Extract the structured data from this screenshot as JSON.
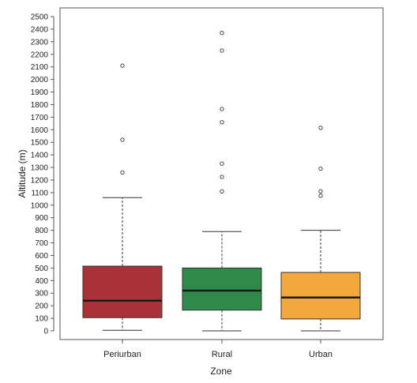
{
  "chart_data": {
    "type": "box",
    "title": "",
    "xlabel": "Zone",
    "ylabel": "Altitude (m)",
    "ylim": [
      -80,
      2600
    ],
    "yticks": [
      0,
      100,
      200,
      300,
      400,
      500,
      600,
      700,
      800,
      900,
      1000,
      1100,
      1200,
      1300,
      1400,
      1500,
      1600,
      1700,
      1800,
      1900,
      2000,
      2100,
      2200,
      2300,
      2400,
      2500
    ],
    "grid": false,
    "categories": [
      "Periurban",
      "Rural",
      "Urban"
    ],
    "boxes": [
      {
        "name": "Periurban",
        "whisker_low": 5,
        "q1": 105,
        "median": 240,
        "q3": 515,
        "whisker_high": 1060,
        "outliers": [
          1260,
          1520,
          2110
        ],
        "color": "#a83236"
      },
      {
        "name": "Rural",
        "whisker_low": 0,
        "q1": 165,
        "median": 320,
        "q3": 500,
        "whisker_high": 790,
        "outliers": [
          1110,
          1225,
          1330,
          1660,
          1765,
          2230,
          2370
        ],
        "color": "#2f8a4a"
      },
      {
        "name": "Urban",
        "whisker_low": 0,
        "q1": 95,
        "median": 265,
        "q3": 465,
        "whisker_high": 800,
        "outliers": [
          1075,
          1110,
          1290,
          1615
        ],
        "color": "#f2a83a"
      }
    ]
  }
}
